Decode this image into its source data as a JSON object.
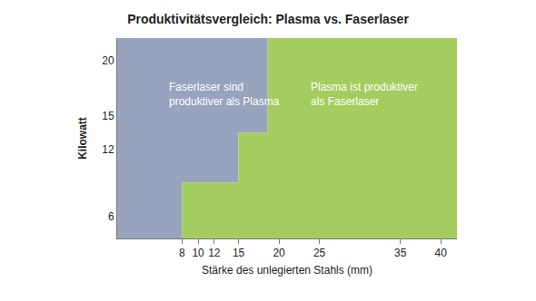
{
  "chart_data": {
    "type": "area",
    "title": "Produktivitätsvergleich: Plasma vs. Faserlaser",
    "x_label": "Stärke des unlegierten Stahls (mm)",
    "y_label": "Kilowatt",
    "x": [
      8,
      8,
      15,
      15,
      18.6,
      18.6
    ],
    "values": [
      4,
      9,
      9,
      13.5,
      13.5,
      22
    ],
    "series": [
      {
        "name": "Faserlaser sind\nproduktiver als Plasma",
        "color": "#98a3be"
      },
      {
        "name": "Plasma ist produktiver\nals Faserlaser",
        "color": "#a4cd5f"
      }
    ],
    "xlim": [
      0,
      42
    ],
    "xticks": [
      8,
      10,
      12,
      15,
      20,
      25,
      35,
      40
    ],
    "ylim": [
      4,
      22
    ],
    "yticks": [
      6,
      12,
      15,
      20
    ],
    "grid": false
  }
}
